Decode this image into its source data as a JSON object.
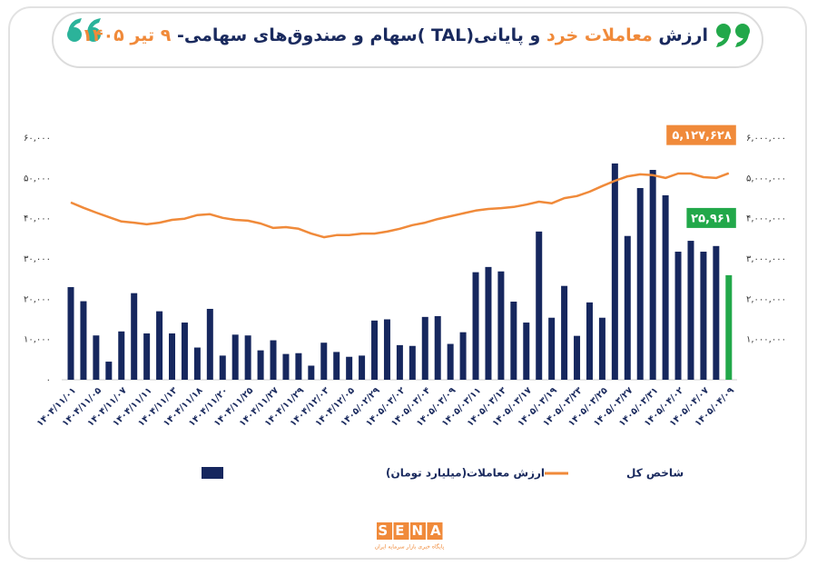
{
  "chart_data": {
    "type": "bar",
    "title": [
      "ارزش ",
      "معاملات خرد",
      " و پایانی(TAL )سهام و صندوق‌های سهامی- ",
      "۹ تیر ۱۴۰۵"
    ],
    "title_colors": [
      "#1a2a5e",
      "#f08a3a",
      "#1a2a5e",
      "#f08a3a"
    ],
    "categories": [
      "۱۴۰۴/۱۱/۰۱",
      null,
      "۱۴۰۴/۱۱/۰۵",
      null,
      "۱۴۰۴/۱۱/۰۷",
      null,
      "۱۴۰۴/۱۱/۱۱",
      null,
      "۱۴۰۴/۱۱/۱۳",
      null,
      "۱۴۰۴/۱۱/۱۸",
      null,
      "۱۴۰۴/۱۱/۲۰",
      null,
      "۱۴۰۴/۱۱/۲۵",
      null,
      "۱۴۰۴/۱۱/۲۷",
      null,
      "۱۴۰۴/۱۱/۲۹",
      null,
      "۱۴۰۴/۱۲/۰۳",
      null,
      "۱۴۰۴/۱۲/۰۵",
      null,
      "۱۴۰۵/۰۲/۲۹",
      null,
      "۱۴۰۵/۰۳/۰۲",
      null,
      "۱۴۰۵/۰۳/۰۴",
      null,
      "۱۴۰۵/۰۳/۰۹",
      null,
      "۱۴۰۵/۰۳/۱۱",
      null,
      "۱۴۰۵/۰۳/۱۳",
      null,
      "۱۴۰۵/۰۳/۱۷",
      null,
      "۱۴۰۵/۰۳/۱۹",
      null,
      "۱۴۰۵/۰۳/۲۳",
      null,
      "۱۴۰۵/۰۳/۲۵",
      null,
      "۱۴۰۵/۰۳/۲۷",
      null,
      "۱۴۰۵/۰۳/۳۱",
      null,
      "۱۴۰۵/۰۴/۰۲",
      null,
      "۱۴۰۵/۰۴/۰۷",
      null,
      "۱۴۰۵/۰۴/۰۹"
    ],
    "series": [
      {
        "name": "ارزش معاملات(میلیارد تومان)",
        "type": "bar",
        "color": "#16275e",
        "highlight_color": "#22a84a",
        "values": [
          23000,
          19500,
          11000,
          4500,
          12000,
          21500,
          11500,
          17000,
          11500,
          14200,
          8000,
          17600,
          6000,
          11200,
          11000,
          7300,
          9800,
          6400,
          6600,
          3500,
          9200,
          6900,
          5700,
          6000,
          14700,
          15000,
          8600,
          8400,
          15600,
          15800,
          8900,
          11800,
          26700,
          28000,
          26900,
          19400,
          14200,
          36800,
          15400,
          23300,
          10900,
          19200,
          15400,
          53700,
          35700,
          47600,
          52100,
          45800,
          31800,
          34500,
          31800,
          33200,
          25961
        ],
        "value_labels": [
          null,
          null,
          null,
          null,
          null,
          null,
          null,
          null,
          null,
          null,
          null,
          null,
          null,
          null,
          null,
          null,
          null,
          null,
          null,
          null,
          null,
          null,
          null,
          null,
          null,
          null,
          null,
          null,
          null,
          null,
          null,
          null,
          null,
          null,
          null,
          null,
          null,
          null,
          null,
          null,
          null,
          null,
          null,
          null,
          null,
          null,
          null,
          null,
          null,
          null,
          null,
          null,
          "۲۵,۹۶۱"
        ]
      },
      {
        "name": "شاخص کل",
        "type": "line",
        "axis": "y2",
        "color": "#f08a3a",
        "values": [
          4400000,
          4270000,
          4150000,
          4040000,
          3930000,
          3900000,
          3860000,
          3900000,
          3970000,
          4000000,
          4090000,
          4110000,
          4020000,
          3970000,
          3950000,
          3880000,
          3770000,
          3790000,
          3750000,
          3630000,
          3540000,
          3590000,
          3590000,
          3630000,
          3630000,
          3680000,
          3750000,
          3840000,
          3900000,
          3990000,
          4060000,
          4130000,
          4200000,
          4240000,
          4260000,
          4290000,
          4350000,
          4420000,
          4380000,
          4510000,
          4560000,
          4670000,
          4810000,
          4940000,
          5050000,
          5100000,
          5080000,
          5010000,
          5120000,
          5120000,
          5030000,
          5010000,
          5127628
        ],
        "value_labels": [
          null,
          null,
          null,
          null,
          null,
          null,
          null,
          null,
          null,
          null,
          null,
          null,
          null,
          null,
          null,
          null,
          null,
          null,
          null,
          null,
          null,
          null,
          null,
          null,
          null,
          null,
          null,
          null,
          null,
          null,
          null,
          null,
          null,
          null,
          null,
          null,
          null,
          null,
          null,
          null,
          null,
          null,
          null,
          null,
          null,
          null,
          null,
          null,
          null,
          null,
          null,
          null,
          "۵,۱۲۷,۶۲۸"
        ]
      }
    ],
    "ylim": [
      0,
      60000
    ],
    "yticks": [
      {
        "value": 0,
        "label": "۰"
      },
      {
        "value": 10000,
        "label": "۱۰,۰۰۰"
      },
      {
        "value": 20000,
        "label": "۲۰,۰۰۰"
      },
      {
        "value": 30000,
        "label": "۳۰,۰۰۰"
      },
      {
        "value": 40000,
        "label": "۴۰,۰۰۰"
      },
      {
        "value": 50000,
        "label": "۵۰,۰۰۰"
      },
      {
        "value": 60000,
        "label": "۶۰,۰۰۰"
      }
    ],
    "y2lim": [
      0,
      6000000
    ],
    "y2ticks": [
      {
        "value": 1000000,
        "label": "۱,۰۰۰,۰۰۰"
      },
      {
        "value": 2000000,
        "label": "۲,۰۰۰,۰۰۰"
      },
      {
        "value": 3000000,
        "label": "۳,۰۰۰,۰۰۰"
      },
      {
        "value": 4000000,
        "label": "۴,۰۰۰,۰۰۰"
      },
      {
        "value": 5000000,
        "label": "۵,۰۰۰,۰۰۰"
      },
      {
        "value": 6000000,
        "label": "۶,۰۰۰,۰۰۰"
      }
    ],
    "grid": false
  },
  "footer": {
    "logo": "SENA",
    "tagline": "پایگاه خبری بازار سرمایه ایران"
  }
}
